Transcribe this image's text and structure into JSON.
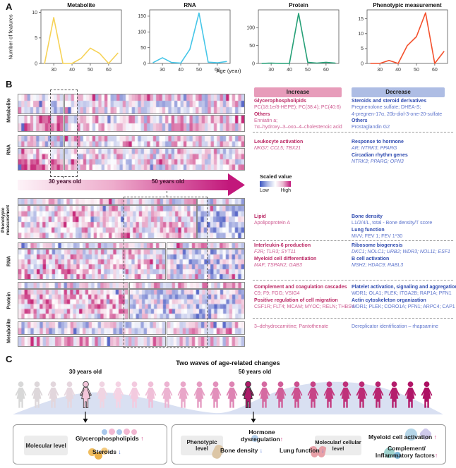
{
  "panel_labels": {
    "a": "A",
    "b": "B",
    "c": "C"
  },
  "chart_data": [
    {
      "type": "line",
      "title": "Metabolite",
      "color": "#f6d256",
      "x": [
        25,
        30,
        35,
        40,
        45,
        50,
        55,
        60,
        65
      ],
      "values": [
        0,
        9,
        0,
        0,
        1,
        3,
        2,
        0,
        2
      ],
      "yticks": [
        0,
        5,
        10
      ],
      "ymax": 10.5,
      "xticks": [
        30,
        40,
        50,
        60
      ]
    },
    {
      "type": "line",
      "title": "RNA",
      "color": "#45c6e8",
      "x": [
        25,
        30,
        35,
        40,
        45,
        50,
        55,
        60,
        65
      ],
      "values": [
        3,
        18,
        3,
        1,
        45,
        160,
        4,
        2,
        6
      ],
      "yticks": [
        0,
        50,
        100,
        150
      ],
      "ymax": 170,
      "xticks": [
        30,
        40,
        50,
        60
      ]
    },
    {
      "type": "line",
      "title": "Protein",
      "color": "#26a077",
      "x": [
        25,
        30,
        35,
        40,
        45,
        50,
        55,
        60,
        65
      ],
      "values": [
        0,
        1,
        0,
        0,
        140,
        3,
        1,
        3,
        1
      ],
      "yticks": [
        0,
        50,
        100
      ],
      "ymax": 150,
      "xticks": [
        30,
        40,
        50,
        60
      ]
    },
    {
      "type": "line",
      "title": "Phenotypic measurement",
      "color": "#f4502c",
      "x": [
        25,
        30,
        35,
        40,
        45,
        50,
        55,
        60,
        65
      ],
      "values": [
        0,
        0,
        1,
        0,
        6,
        9,
        17,
        0,
        4
      ],
      "yticks": [
        0,
        5,
        10,
        15
      ],
      "ymax": 18,
      "xticks": [
        30,
        40,
        50,
        60
      ]
    }
  ],
  "panelA": {
    "ylabel": "Number of features",
    "xlabel": "Age (year)"
  },
  "panelB": {
    "increase_label": "Increase",
    "decrease_label": "Decrease",
    "colors": {
      "increase_bg": "#e79cba",
      "decrease_bg": "#aebde4",
      "heat_pink": "#c62878",
      "heat_blue": "#5a69c8"
    },
    "scaled_value": {
      "title": "Scaled value",
      "low": "Low",
      "high": "High"
    },
    "arrow_labels": {
      "young": "30 years old",
      "old": "50 years old"
    },
    "row_labels": [
      "Metabolite",
      "RNA",
      "Phenotypic measurement",
      "RNA",
      "Protein",
      "Metabolite"
    ],
    "sections": [
      {
        "increase": [
          {
            "s": "h",
            "t": "Glycerophospholipids"
          },
          {
            "s": "t",
            "t": "PC(18:1e/8-HEPE); PC(38:4); PC(40:6)"
          },
          {
            "s": "h",
            "t": "Others"
          },
          {
            "s": "t",
            "t": "Enniatin a;"
          },
          {
            "s": "t",
            "t": "7α–hydroxy–3–oxo–4–cholestenoic acid"
          }
        ],
        "decrease": [
          {
            "s": "h",
            "t": "Steroids and steroid derivatives"
          },
          {
            "s": "t",
            "t": "Pregnenolone sulfate; DHEA-S;"
          },
          {
            "s": "t",
            "t": "4-pregnen-17α, 20b-diol-3-one-20-sulfate"
          },
          {
            "s": "h",
            "t": "Others"
          },
          {
            "s": "t",
            "t": "Prostaglandin G2"
          }
        ]
      },
      {
        "increase": [
          {
            "s": "h",
            "t": "Leukocyte activation"
          },
          {
            "s": "i",
            "t": "NKG7; CCL5; TBX21"
          }
        ],
        "decrease": [
          {
            "s": "h",
            "t": "Response to hormone"
          },
          {
            "s": "i",
            "t": "AR; NTRK3; PPARG"
          },
          {
            "s": "h",
            "t": "Circadian rhythm genes"
          },
          {
            "s": "i",
            "t": "NTRK3; PPARG; OPN3"
          }
        ]
      },
      {
        "increase": [
          {
            "s": "h",
            "t": "Lipid"
          },
          {
            "s": "t",
            "t": "Apolipoprotein A"
          }
        ],
        "decrease": [
          {
            "s": "h",
            "t": "Bone density"
          },
          {
            "s": "t",
            "t": "L1/2/4/L, total - Bone density/T score"
          },
          {
            "s": "h",
            "t": "Lung function"
          },
          {
            "s": "t",
            "t": "MVV; FEV 1; FEV 1*30"
          }
        ]
      },
      {
        "increase": [
          {
            "s": "h",
            "t": "Interleukin-6 production"
          },
          {
            "s": "i",
            "t": "F2R; TLR3; SYT11"
          },
          {
            "s": "h",
            "t": "Myeloid cell differentiation"
          },
          {
            "s": "i",
            "t": "MAF; TSPAN2; GAB3"
          }
        ],
        "decrease": [
          {
            "s": "h",
            "t": "Ribosome biogenesis"
          },
          {
            "s": "i",
            "t": "DKC1; NOLC1; URB2; WDR3; NOL11; ESF1"
          },
          {
            "s": "h",
            "t": "B cell activation"
          },
          {
            "s": "i",
            "t": "MSH2; HDAC9; RABL3"
          }
        ]
      },
      {
        "increase": [
          {
            "s": "h",
            "t": "Complement and coagulation cascades"
          },
          {
            "s": "t",
            "t": "C9; F9; FGG; VSIG4"
          },
          {
            "s": "h",
            "t": "Positive regulation of cell migration"
          },
          {
            "s": "t",
            "t": "CSF1R; FLT4; MCAM; MYOC; RELN; THBS4"
          }
        ],
        "decrease": [
          {
            "s": "h",
            "t": "Platelet activation, signaling and aggregation"
          },
          {
            "s": "t",
            "t": "WDR1; OLA1; PLEK; ITGA2B; RAP1A; PFN1"
          },
          {
            "s": "h",
            "t": "Actin cytoskeleton organization"
          },
          {
            "s": "t",
            "t": "WDR1; PLEK; CORO1A; PFN1; ARPC4; CAP1"
          }
        ]
      },
      {
        "increase": [
          {
            "s": "t",
            "t": "3–dehydrocarnitine; Pantothenate"
          }
        ],
        "decrease": [
          {
            "s": "t",
            "t": "Dereplicator identification – rhapsamine"
          }
        ]
      }
    ]
  },
  "panelC": {
    "title": "Two waves of age-related changes",
    "label_30": "30 years old",
    "label_50": "50 years old",
    "figures": {
      "count": 26,
      "highlight": [
        4,
        14
      ],
      "color_stops": [
        "#d8d8d8",
        "#f6d3e5",
        "#e08ab7",
        "#c43a80",
        "#ad0f62"
      ],
      "highlight_fill_30": "#f3c6da",
      "highlight_fill_50": "#ad1a68"
    },
    "icons": {
      "up_arrow": "↑",
      "down_arrow": "↓"
    },
    "left_box": {
      "level": "Molecular level",
      "item1": "Glycerophospholipids",
      "item1_dir": "up",
      "item2": "Steroids",
      "item2_dir": "down"
    },
    "right_box": {
      "level1": "Phenotypic level",
      "level2": "Molecular/ cellular level",
      "item1a": "Hormone",
      "item1b": "dysregulation",
      "item1_dir": "up",
      "item2": "Bone density",
      "item2_dir": "down",
      "item3": "Lung function",
      "item3_dir": "down",
      "item4": "Myeloid cell activation",
      "item4_dir": "up",
      "item5a": "Complement/",
      "item5b": "Inflammatory factors",
      "item5_dir": "up"
    }
  }
}
